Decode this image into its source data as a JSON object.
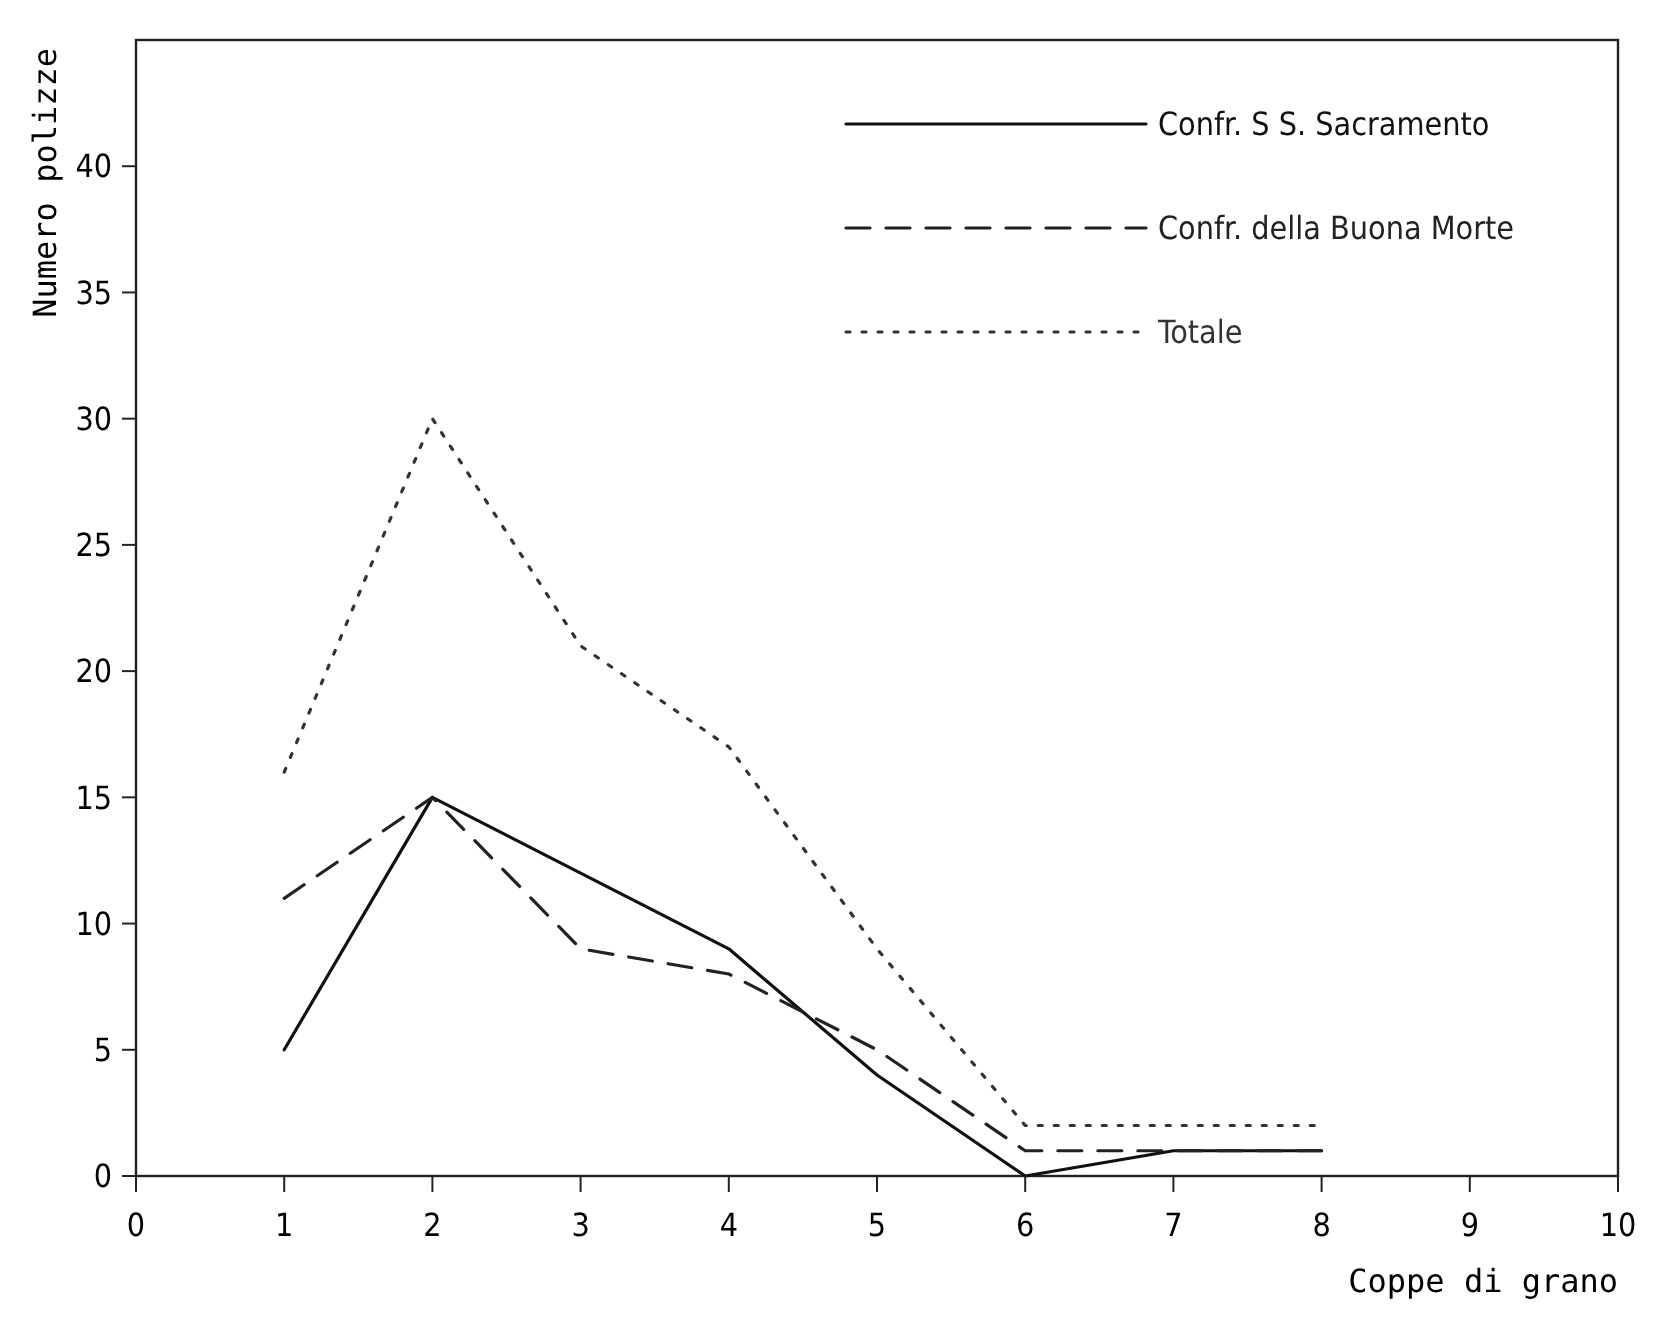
{
  "chart_data": {
    "type": "line",
    "xlabel": "Coppe di grano",
    "ylabel": "Numero polizze",
    "x": [
      1,
      2,
      3,
      4,
      5,
      6,
      7,
      8
    ],
    "xlim": [
      0,
      10
    ],
    "xticks": [
      0,
      1,
      2,
      3,
      4,
      5,
      6,
      7,
      8,
      9,
      10
    ],
    "ylim": [
      0,
      45
    ],
    "yticks": [
      0,
      5,
      10,
      15,
      20,
      25,
      30,
      35,
      40
    ],
    "legend": "top right",
    "grid": false,
    "marker": "none",
    "series": [
      {
        "name": "Confr. S S. Sacramento",
        "color": "#111111",
        "line_style": "solid",
        "values": [
          5,
          15,
          12,
          9,
          4,
          0,
          1,
          1
        ]
      },
      {
        "name": "Confr. della Buona Morte",
        "color": "#222222",
        "line_style": "dashed",
        "values": [
          11,
          15,
          9,
          8,
          5,
          1,
          1,
          1
        ]
      },
      {
        "name": "Totale",
        "color": "#333333",
        "line_style": "dotted",
        "values": [
          16,
          30,
          21,
          17,
          9,
          2,
          2,
          2
        ]
      }
    ]
  }
}
